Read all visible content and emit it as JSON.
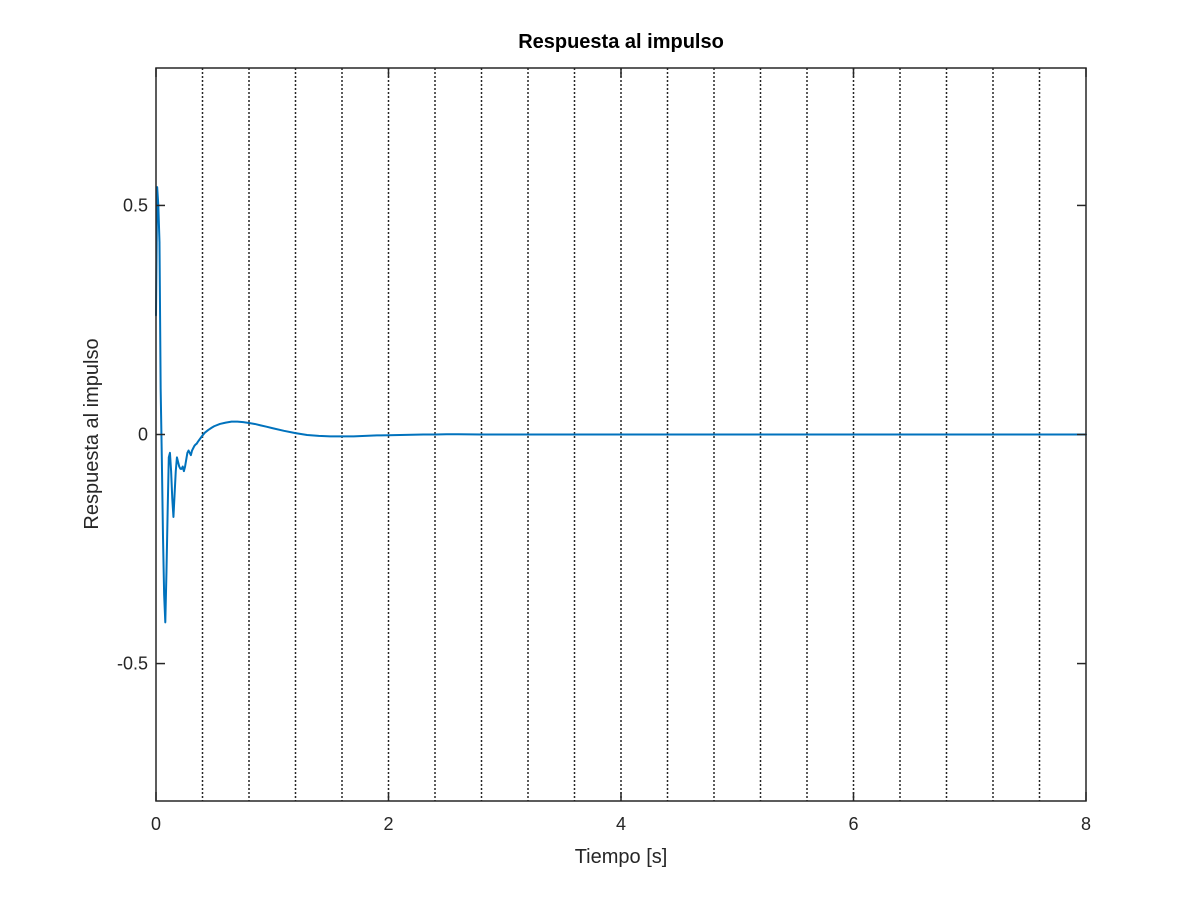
{
  "chart_data": {
    "type": "line",
    "title": "Respuesta al impulso",
    "xlabel": "Tiempo [s]",
    "ylabel": "Respuesta al impulso",
    "xlim": [
      0,
      8
    ],
    "ylim": [
      -0.8,
      0.8
    ],
    "xticks": [
      0,
      2,
      4,
      6,
      8
    ],
    "xtick_labels": [
      "0",
      "2",
      "4",
      "6",
      "8"
    ],
    "yticks": [
      -0.5,
      0,
      0.5
    ],
    "ytick_labels": [
      "-0.5",
      "0",
      "0.5"
    ],
    "grid": "vertical dotted lines every 0.4",
    "grid_x": [
      0.4,
      0.8,
      1.2,
      1.6,
      2.0,
      2.4,
      2.8,
      3.2,
      3.6,
      4.0,
      4.4,
      4.8,
      5.2,
      5.6,
      6.0,
      6.4,
      6.8,
      7.2,
      7.6
    ],
    "series": [
      {
        "color": "#0072bd",
        "x": [
          0,
          0.01,
          0.02,
          0.03,
          0.04,
          0.05,
          0.06,
          0.07,
          0.08,
          0.09,
          0.1,
          0.11,
          0.12,
          0.13,
          0.14,
          0.15,
          0.16,
          0.17,
          0.18,
          0.19,
          0.2,
          0.21,
          0.22,
          0.23,
          0.24,
          0.25,
          0.26,
          0.27,
          0.28,
          0.29,
          0.3,
          0.31,
          0.32,
          0.33,
          0.34,
          0.35,
          0.36,
          0.38,
          0.4,
          0.42,
          0.45,
          0.48,
          0.5,
          0.55,
          0.6,
          0.65,
          0.7,
          0.75,
          0.8,
          0.85,
          0.9,
          0.95,
          1.0,
          1.1,
          1.2,
          1.3,
          1.4,
          1.5,
          1.6,
          1.7,
          1.8,
          1.9,
          2.0,
          2.1,
          2.2,
          2.3,
          2.4,
          2.5,
          2.6,
          2.8,
          3.0,
          3.5,
          4.0,
          5.0,
          6.0,
          7.0,
          8.0
        ],
        "y": [
          0.26,
          0.54,
          0.5,
          0.42,
          0.1,
          -0.05,
          -0.22,
          -0.35,
          -0.41,
          -0.3,
          -0.17,
          -0.05,
          -0.04,
          -0.08,
          -0.14,
          -0.18,
          -0.13,
          -0.08,
          -0.05,
          -0.06,
          -0.07,
          -0.075,
          -0.075,
          -0.07,
          -0.08,
          -0.07,
          -0.055,
          -0.04,
          -0.035,
          -0.04,
          -0.045,
          -0.035,
          -0.03,
          -0.025,
          -0.022,
          -0.02,
          -0.016,
          -0.009,
          -0.002,
          0.004,
          0.01,
          0.015,
          0.018,
          0.023,
          0.026,
          0.028,
          0.028,
          0.027,
          0.025,
          0.023,
          0.02,
          0.017,
          0.014,
          0.008,
          0.003,
          -0.001,
          -0.003,
          -0.004,
          -0.004,
          -0.004,
          -0.003,
          -0.002,
          -0.0015,
          -0.001,
          -0.0005,
          0.0,
          0.0,
          0.0005,
          0.0005,
          0.0,
          0.0,
          0.0,
          0.0,
          0.0,
          0.0,
          0.0,
          0.0
        ]
      }
    ]
  }
}
